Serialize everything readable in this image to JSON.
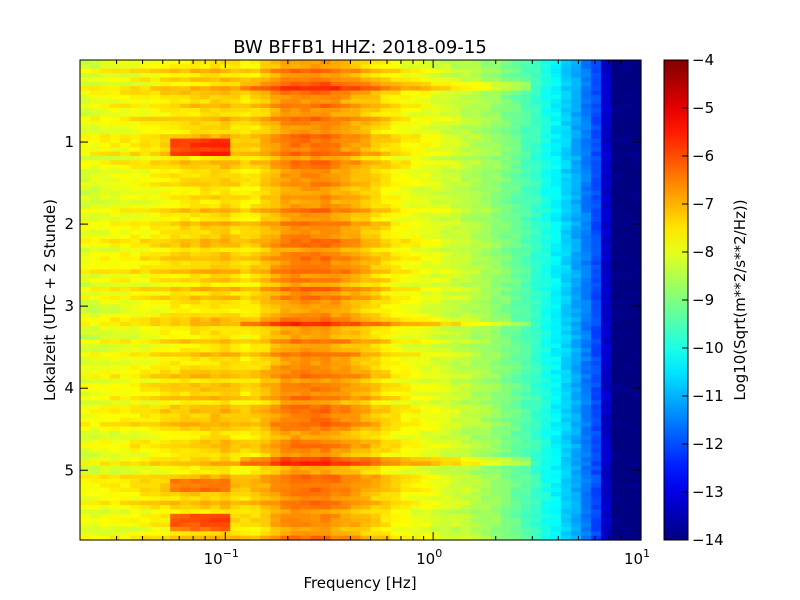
{
  "chart_data": {
    "type": "heatmap",
    "title": "BW BFFB1 HHZ: 2018-09-15",
    "xlabel": "Frequency [Hz]",
    "ylabel": "Lokalzeit (UTC + 2 Stunde)",
    "xscale": "log",
    "xlim": [
      0.02,
      10
    ],
    "ylim": [
      0,
      5.85
    ],
    "y_inverted": true,
    "x_ticks": [
      {
        "value": 0.1,
        "base": "10",
        "exp": "−1"
      },
      {
        "value": 1,
        "base": "10",
        "exp": "0"
      },
      {
        "value": 10,
        "base": "10",
        "exp": "1"
      }
    ],
    "y_ticks": [
      {
        "value": 1,
        "label": "1"
      },
      {
        "value": 2,
        "label": "2"
      },
      {
        "value": 3,
        "label": "3"
      },
      {
        "value": 4,
        "label": "4"
      },
      {
        "value": 5,
        "label": "5"
      }
    ],
    "colorbar": {
      "label": "Log10(Sqrt(m**2/s**2/Hz))",
      "colormap": "jet",
      "range": [
        -14,
        -4
      ],
      "ticks": [
        {
          "value": -4,
          "label": "−4"
        },
        {
          "value": -5,
          "label": "−5"
        },
        {
          "value": -6,
          "label": "−6"
        },
        {
          "value": -7,
          "label": "−7"
        },
        {
          "value": -8,
          "label": "−8"
        },
        {
          "value": -9,
          "label": "−9"
        },
        {
          "value": -10,
          "label": "−10"
        },
        {
          "value": -11,
          "label": "−11"
        },
        {
          "value": -12,
          "label": "−12"
        },
        {
          "value": -13,
          "label": "−13"
        },
        {
          "value": -14,
          "label": "−14"
        }
      ]
    },
    "frequency_profile": {
      "frequencies": [
        0.02,
        0.04,
        0.06,
        0.1,
        0.13,
        0.2,
        0.3,
        0.45,
        0.7,
        1,
        1.5,
        2,
        3,
        4,
        5,
        6.5,
        7,
        10
      ],
      "values": [
        -8.0,
        -7.7,
        -7.4,
        -7.2,
        -7.5,
        -6.6,
        -6.5,
        -7.0,
        -7.7,
        -8.0,
        -8.4,
        -8.8,
        -9.6,
        -10.4,
        -11.2,
        -12.3,
        -14.0,
        -14.0
      ]
    }
  }
}
